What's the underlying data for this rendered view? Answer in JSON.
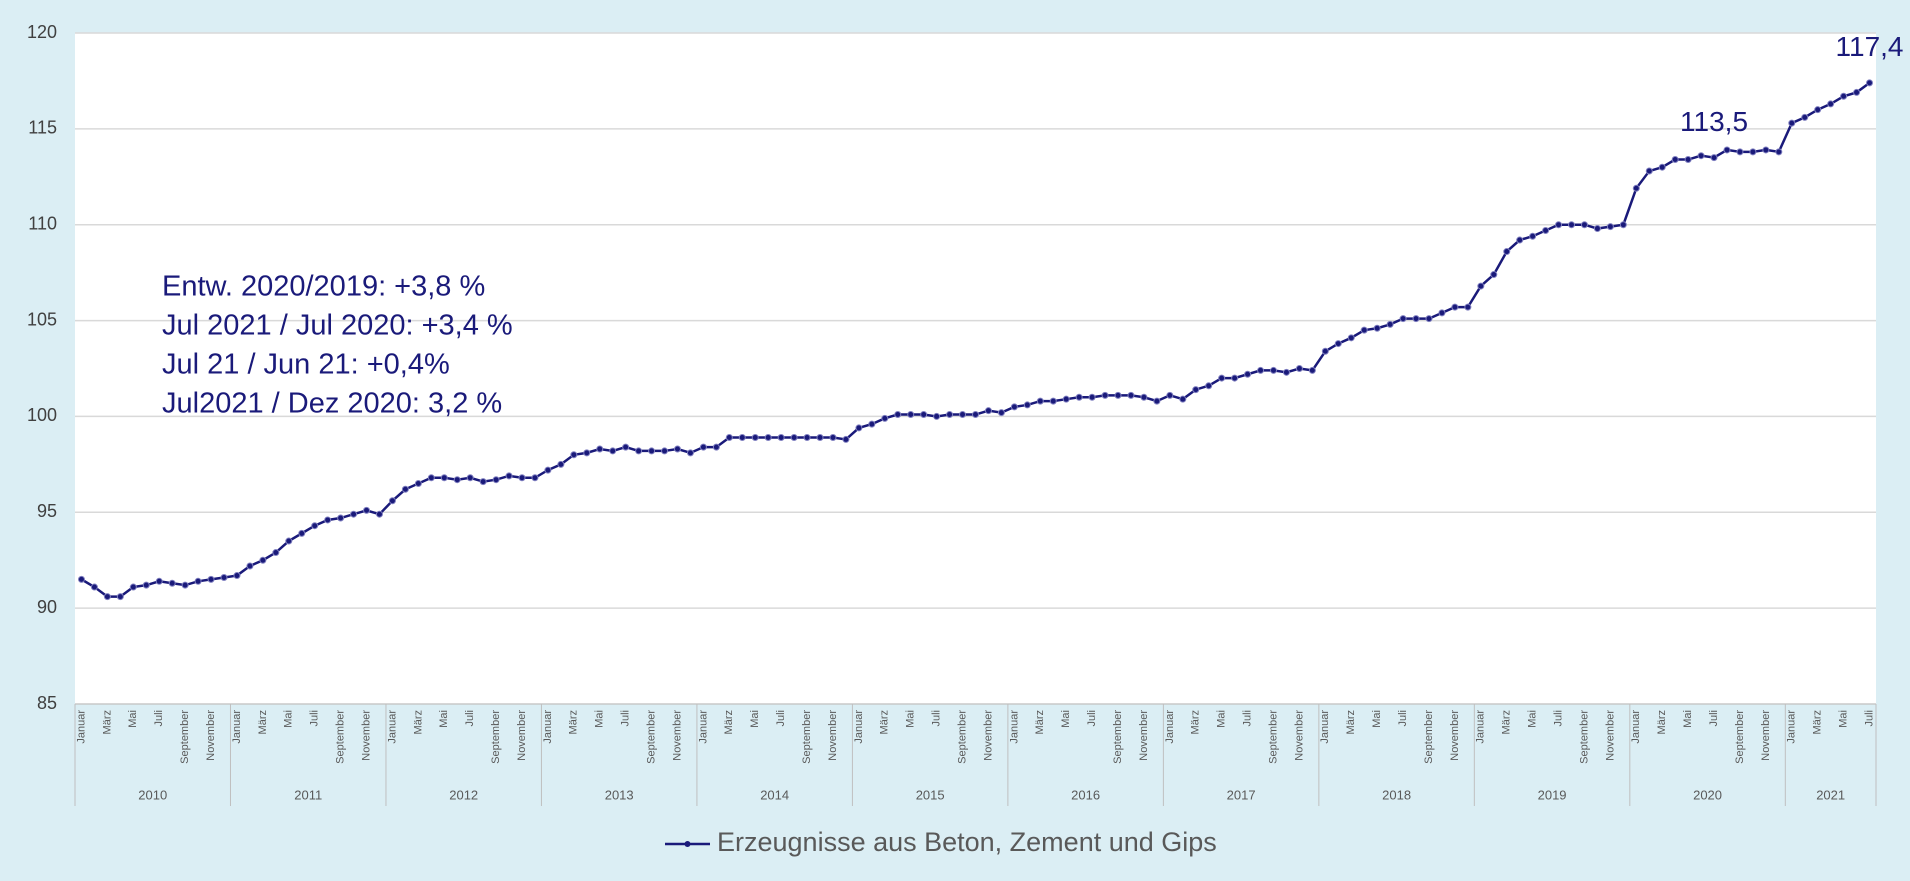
{
  "chart_data": {
    "type": "line",
    "categories": [
      "Januar",
      null,
      "März",
      null,
      "Mai",
      null,
      "Juli",
      null,
      "September",
      null,
      "November",
      null,
      "Januar",
      null,
      "März",
      null,
      "Mai",
      null,
      "Juli",
      null,
      "September",
      null,
      "November",
      null,
      "Januar",
      null,
      "März",
      null,
      "Mai",
      null,
      "Juli",
      null,
      "September",
      null,
      "November",
      null,
      "Januar",
      null,
      "März",
      null,
      "Mai",
      null,
      "Juli",
      null,
      "September",
      null,
      "November",
      null,
      "Januar",
      null,
      "März",
      null,
      "Mai",
      null,
      "Juli",
      null,
      "September",
      null,
      "November",
      null,
      "Januar",
      null,
      "März",
      null,
      "Mai",
      null,
      "Juli",
      null,
      "September",
      null,
      "November",
      null,
      "Januar",
      null,
      "März",
      null,
      "Mai",
      null,
      "Juli",
      null,
      "September",
      null,
      "November",
      null,
      "Januar",
      null,
      "März",
      null,
      "Mai",
      null,
      "Juli",
      null,
      "September",
      null,
      "November",
      null,
      "Januar",
      null,
      "März",
      null,
      "Mai",
      null,
      "Juli",
      null,
      "September",
      null,
      "November",
      null,
      "Januar",
      null,
      "März",
      null,
      "Mai",
      null,
      "Juli",
      null,
      "September",
      null,
      "November",
      null,
      "Januar",
      null,
      "März",
      null,
      "Mai",
      null,
      "Juli",
      null,
      "September",
      null,
      "November",
      null,
      "Januar",
      null,
      "März",
      null,
      "Mai",
      null,
      "Juli"
    ],
    "years": [
      "2010",
      "2011",
      "2012",
      "2013",
      "2014",
      "2015",
      "2016",
      "2017",
      "2018",
      "2019",
      "2020",
      "2021"
    ],
    "series": [
      {
        "name": "Erzeugnisse aus Beton, Zement und Gips",
        "color": "#1a1a7a",
        "values": [
          91.5,
          91.1,
          90.6,
          90.6,
          91.1,
          91.2,
          91.4,
          91.3,
          91.2,
          91.4,
          91.5,
          91.6,
          91.7,
          92.2,
          92.5,
          92.9,
          93.5,
          93.9,
          94.3,
          94.6,
          94.7,
          94.9,
          95.1,
          94.9,
          95.6,
          96.2,
          96.5,
          96.8,
          96.8,
          96.7,
          96.8,
          96.6,
          96.7,
          96.9,
          96.8,
          96.8,
          97.2,
          97.5,
          98.0,
          98.1,
          98.3,
          98.2,
          98.4,
          98.2,
          98.2,
          98.2,
          98.3,
          98.1,
          98.4,
          98.4,
          98.9,
          98.9,
          98.9,
          98.9,
          98.9,
          98.9,
          98.9,
          98.9,
          98.9,
          98.8,
          99.4,
          99.6,
          99.9,
          100.1,
          100.1,
          100.1,
          100.0,
          100.1,
          100.1,
          100.1,
          100.3,
          100.2,
          100.5,
          100.6,
          100.8,
          100.8,
          100.9,
          101.0,
          101.0,
          101.1,
          101.1,
          101.1,
          101.0,
          100.8,
          101.1,
          100.9,
          101.4,
          101.6,
          102.0,
          102.0,
          102.2,
          102.4,
          102.4,
          102.3,
          102.5,
          102.4,
          103.4,
          103.8,
          104.1,
          104.5,
          104.6,
          104.8,
          105.1,
          105.1,
          105.1,
          105.4,
          105.7,
          105.7,
          106.8,
          107.4,
          108.6,
          109.2,
          109.4,
          109.7,
          110.0,
          110.0,
          110.0,
          109.8,
          109.9,
          110.0,
          111.9,
          112.8,
          113.0,
          113.4,
          113.4,
          113.6,
          113.5,
          113.9,
          113.8,
          113.8,
          113.9,
          113.8,
          115.3,
          115.6,
          116.0,
          116.3,
          116.7,
          116.9,
          117.4
        ],
        "value_labels": [
          null,
          null,
          null,
          null,
          null,
          null,
          null,
          null,
          null,
          null,
          null,
          null,
          null,
          null,
          null,
          null,
          null,
          null,
          null,
          null,
          null,
          null,
          null,
          null,
          null,
          null,
          null,
          null,
          null,
          null,
          null,
          null,
          null,
          null,
          null,
          null,
          null,
          null,
          null,
          null,
          null,
          null,
          null,
          null,
          null,
          null,
          null,
          null,
          null,
          null,
          null,
          null,
          null,
          null,
          null,
          null,
          null,
          null,
          null,
          null,
          null,
          null,
          null,
          null,
          null,
          null,
          null,
          null,
          null,
          null,
          null,
          null,
          null,
          null,
          null,
          null,
          null,
          null,
          null,
          null,
          null,
          null,
          null,
          null,
          null,
          null,
          null,
          null,
          null,
          null,
          null,
          null,
          null,
          null,
          null,
          null,
          null,
          null,
          null,
          null,
          null,
          null,
          null,
          null,
          null,
          null,
          null,
          null,
          null,
          null,
          null,
          null,
          null,
          null,
          null,
          null,
          null,
          null,
          null,
          null,
          null,
          null,
          null,
          null,
          null,
          null,
          "113,5",
          null,
          null,
          null,
          null,
          null,
          null,
          null,
          null,
          null,
          null,
          null,
          "117,4"
        ]
      }
    ],
    "annotations": [
      "Entw. 2020/2019: +3,8 %",
      "Jul 2021 / Jul 2020: +3,4 %",
      "Jul 21 / Jun 21: +0,4%",
      "Jul2021 / Dez 2020: 3,2 %"
    ],
    "ylim": [
      85,
      120
    ],
    "yticks": [
      85,
      90,
      95,
      100,
      105,
      110,
      115,
      120
    ],
    "grid": true,
    "legend": "bottom"
  }
}
